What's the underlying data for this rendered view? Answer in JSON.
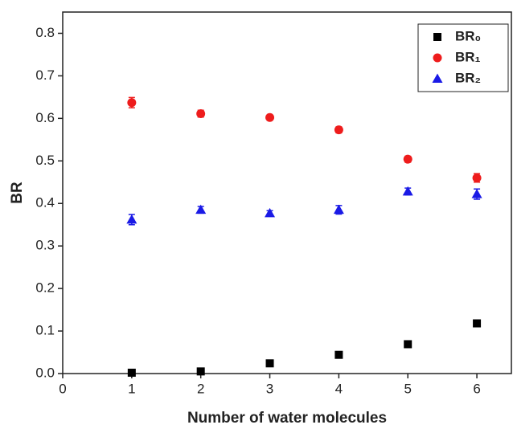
{
  "chart_data": {
    "type": "scatter",
    "xlabel": "Number of water molecules",
    "ylabel": "BR",
    "x": [
      1,
      2,
      3,
      4,
      5,
      6
    ],
    "series": [
      {
        "name": "BR₀",
        "color": "#000000",
        "marker": "square",
        "values": [
          0.002,
          0.005,
          0.024,
          0.044,
          0.069,
          0.118
        ],
        "errors": [
          0.003,
          0.004,
          0.005,
          0.005,
          0.005,
          0.006
        ]
      },
      {
        "name": "BR₁",
        "color": "#ee1c1c",
        "marker": "circle",
        "values": [
          0.637,
          0.611,
          0.602,
          0.573,
          0.504,
          0.46
        ],
        "errors": [
          0.012,
          0.008,
          0.006,
          0.007,
          0.007,
          0.01
        ]
      },
      {
        "name": "BR₂",
        "color": "#1a1ae6",
        "marker": "triangle",
        "values": [
          0.362,
          0.385,
          0.377,
          0.385,
          0.428,
          0.422
        ],
        "errors": [
          0.012,
          0.008,
          0.006,
          0.01,
          0.008,
          0.012
        ]
      }
    ],
    "xlim": [
      0,
      6.5
    ],
    "xticks": [
      0,
      1,
      2,
      3,
      4,
      5,
      6
    ],
    "ylim": [
      0,
      0.85
    ],
    "yticks": [
      {
        "value": 0,
        "label": "0.0"
      },
      0.1,
      0.2,
      0.3,
      0.4,
      0.5,
      0.6,
      0.7,
      0.8
    ],
    "legend": "upper right"
  }
}
